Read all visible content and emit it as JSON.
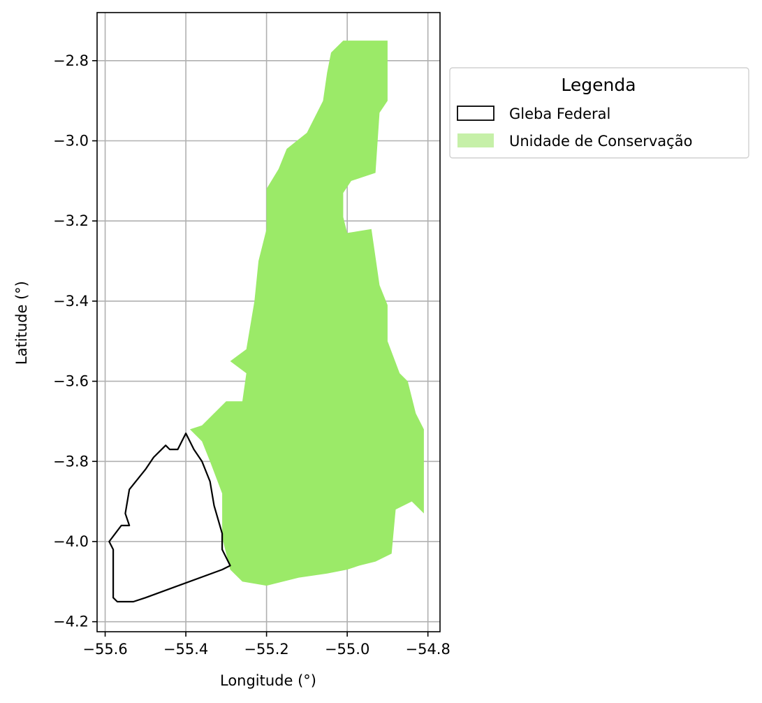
{
  "chart_data": {
    "type": "map",
    "xlabel": "Longitude (°)",
    "ylabel": "Latitude (°)",
    "xlim": [
      -55.62,
      -54.77
    ],
    "ylim": [
      -4.225,
      -2.68
    ],
    "xticks": [
      -55.6,
      -55.4,
      -55.2,
      -55.0,
      -54.8
    ],
    "yticks": [
      -2.8,
      -3.0,
      -3.2,
      -3.4,
      -3.6,
      -3.8,
      -4.0,
      -4.2
    ],
    "xtick_labels": [
      "−55.6",
      "−55.4",
      "−55.2",
      "−55.0",
      "−54.8"
    ],
    "ytick_labels": [
      "−2.8",
      "−3.0",
      "−3.2",
      "−3.4",
      "−3.6",
      "−3.8",
      "−4.0",
      "−4.2"
    ],
    "grid": true,
    "legend": {
      "title": "Legenda",
      "placement": "outside upper right",
      "entries": [
        {
          "label": "Gleba Federal",
          "style": "outline",
          "color": "#000000"
        },
        {
          "label": "Unidade de Conservação",
          "style": "fill",
          "color": "#c6f0a8"
        }
      ]
    },
    "layers": [
      {
        "name": "Unidade de Conservação",
        "fill": "#9bea68",
        "coords": [
          [
            -55.01,
            -2.75
          ],
          [
            -54.9,
            -2.75
          ],
          [
            -54.9,
            -2.9
          ],
          [
            -54.92,
            -2.93
          ],
          [
            -54.93,
            -3.08
          ],
          [
            -54.99,
            -3.1
          ],
          [
            -55.01,
            -3.13
          ],
          [
            -55.01,
            -3.19
          ],
          [
            -55.0,
            -3.23
          ],
          [
            -54.94,
            -3.22
          ],
          [
            -54.92,
            -3.36
          ],
          [
            -54.9,
            -3.41
          ],
          [
            -54.9,
            -3.5
          ],
          [
            -54.87,
            -3.58
          ],
          [
            -54.85,
            -3.6
          ],
          [
            -54.83,
            -3.68
          ],
          [
            -54.81,
            -3.72
          ],
          [
            -54.81,
            -3.93
          ],
          [
            -54.84,
            -3.9
          ],
          [
            -54.88,
            -3.92
          ],
          [
            -54.89,
            -4.03
          ],
          [
            -54.93,
            -4.05
          ],
          [
            -54.97,
            -4.06
          ],
          [
            -55.0,
            -4.07
          ],
          [
            -55.05,
            -4.08
          ],
          [
            -55.12,
            -4.09
          ],
          [
            -55.2,
            -4.11
          ],
          [
            -55.26,
            -4.1
          ],
          [
            -55.29,
            -4.07
          ],
          [
            -55.31,
            -3.99
          ],
          [
            -55.31,
            -3.88
          ],
          [
            -55.34,
            -3.8
          ],
          [
            -55.36,
            -3.75
          ],
          [
            -55.39,
            -3.72
          ],
          [
            -55.36,
            -3.71
          ],
          [
            -55.3,
            -3.65
          ],
          [
            -55.26,
            -3.65
          ],
          [
            -55.25,
            -3.58
          ],
          [
            -55.29,
            -3.55
          ],
          [
            -55.25,
            -3.52
          ],
          [
            -55.23,
            -3.4
          ],
          [
            -55.22,
            -3.3
          ],
          [
            -55.2,
            -3.22
          ],
          [
            -55.2,
            -3.12
          ],
          [
            -55.17,
            -3.07
          ],
          [
            -55.15,
            -3.02
          ],
          [
            -55.1,
            -2.98
          ],
          [
            -55.06,
            -2.9
          ],
          [
            -55.05,
            -2.83
          ],
          [
            -55.04,
            -2.78
          ]
        ]
      },
      {
        "name": "Gleba Federal",
        "stroke": "#000000",
        "coords": [
          [
            -55.4,
            -3.73
          ],
          [
            -55.38,
            -3.77
          ],
          [
            -55.36,
            -3.8
          ],
          [
            -55.34,
            -3.85
          ],
          [
            -55.33,
            -3.91
          ],
          [
            -55.31,
            -3.98
          ],
          [
            -55.31,
            -4.02
          ],
          [
            -55.29,
            -4.06
          ],
          [
            -55.31,
            -4.07
          ],
          [
            -55.5,
            -4.14
          ],
          [
            -55.53,
            -4.15
          ],
          [
            -55.57,
            -4.15
          ],
          [
            -55.58,
            -4.14
          ],
          [
            -55.58,
            -4.09
          ],
          [
            -55.58,
            -4.02
          ],
          [
            -55.59,
            -4.0
          ],
          [
            -55.56,
            -3.96
          ],
          [
            -55.54,
            -3.96
          ],
          [
            -55.55,
            -3.93
          ],
          [
            -55.54,
            -3.87
          ],
          [
            -55.5,
            -3.82
          ],
          [
            -55.48,
            -3.79
          ],
          [
            -55.45,
            -3.76
          ],
          [
            -55.44,
            -3.77
          ],
          [
            -55.42,
            -3.77
          ]
        ]
      }
    ]
  }
}
